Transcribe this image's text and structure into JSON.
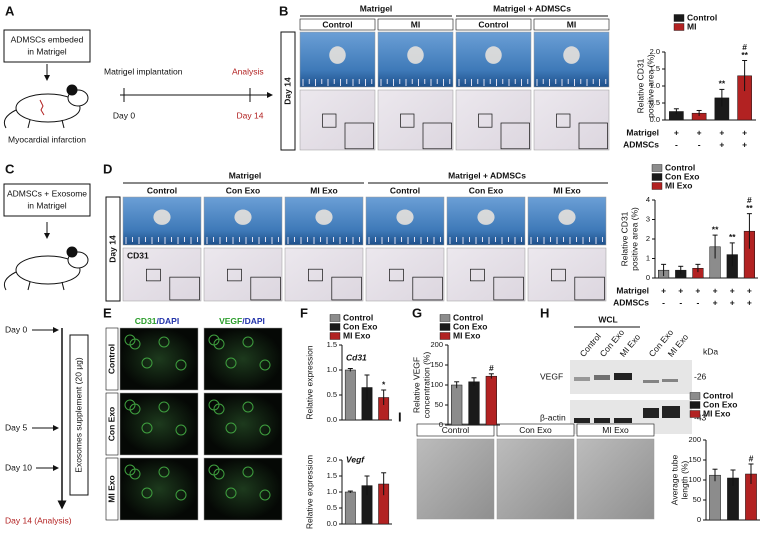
{
  "panels": {
    "A": {
      "label": "A",
      "box": [
        "ADMSCs embeded",
        "in Matrigel"
      ],
      "infarction": "Myocardial infarction",
      "timeline": {
        "start_label": "Matrigel implantation",
        "end_label": "Analysis",
        "start_day": "Day 0",
        "end_day": "Day 14"
      }
    },
    "B": {
      "label": "B",
      "groups": [
        "Matrigel",
        "Matrigel + ADMSCs"
      ],
      "columns": [
        "Control",
        "MI",
        "Control",
        "MI"
      ],
      "row_label": "Day 14"
    },
    "C": {
      "label": "C",
      "box": [
        "ADMSCs + Exosome",
        "in Matrigel"
      ],
      "days": [
        "Day 0",
        "Day 5",
        "Day 10",
        "Day 14 (Analysis)"
      ],
      "supplement": "Exosomes supplement (20 μg)"
    },
    "D": {
      "label": "D",
      "groups": [
        "Matrigel",
        "Matrigel + ADMSCs"
      ],
      "columns": [
        "Control",
        "Con Exo",
        "MI Exo",
        "Control",
        "Con Exo",
        "MI Exo"
      ],
      "row_label": "Day 14",
      "stain": "CD31"
    },
    "E": {
      "label": "E",
      "stains": [
        [
          "CD31",
          "/DAPI"
        ],
        [
          "VEGF",
          "/DAPI"
        ]
      ],
      "rows": [
        "Control",
        "Con Exo",
        "MI Exo"
      ]
    },
    "F": {
      "label": "F"
    },
    "G": {
      "label": "G"
    },
    "H": {
      "label": "H",
      "group": "WCL",
      "lanes": [
        "Control",
        "Con Exo",
        "MI Exo",
        "Con Exo",
        "MI Exo"
      ],
      "unit": "kDa",
      "bands": [
        {
          "name": "VEGF",
          "size": "-26"
        },
        {
          "name": "β-actin",
          "size": "-43"
        }
      ]
    },
    "I": {
      "label": "I",
      "columns": [
        "Control",
        "Con Exo",
        "MI Exo"
      ]
    }
  },
  "chart_data": [
    {
      "type": "bar",
      "ylabel": [
        "Relative CD31",
        "positive area (%)"
      ],
      "legend": [
        {
          "name": "Control",
          "color": "#1a1a1a"
        },
        {
          "name": "MI",
          "color": "#b22222"
        }
      ],
      "values": [
        0.25,
        0.2,
        0.65,
        1.3
      ],
      "errors": [
        0.08,
        0.08,
        0.25,
        0.45
      ],
      "colors": [
        "#1a1a1a",
        "#b22222",
        "#1a1a1a",
        "#b22222"
      ],
      "significance": [
        null,
        null,
        [
          "**"
        ],
        [
          "#",
          "**"
        ]
      ],
      "ylim": [
        0,
        2
      ],
      "yticks": [
        {
          "value": 0,
          "label": "0.0"
        },
        0.5,
        {
          "value": 1,
          "label": "1.0"
        },
        1.5,
        {
          "value": 2,
          "label": "2.0"
        }
      ],
      "conditions": [
        {
          "name": "Matrigel",
          "marks": [
            "+",
            "+",
            "+",
            "+"
          ]
        },
        {
          "name": "ADMSCs",
          "marks": [
            "-",
            "-",
            "+",
            "+"
          ]
        }
      ]
    },
    {
      "type": "bar",
      "ylabel": [
        "Relative CD31",
        "positive area (%)"
      ],
      "legend": [
        {
          "name": "Control",
          "color": "#8c8c8c"
        },
        {
          "name": "Con Exo",
          "color": "#1a1a1a"
        },
        {
          "name": "MI Exo",
          "color": "#b22222"
        }
      ],
      "values": [
        0.4,
        0.4,
        0.5,
        1.6,
        1.2,
        2.4
      ],
      "errors": [
        0.3,
        0.2,
        0.2,
        0.6,
        0.6,
        0.9
      ],
      "colors": [
        "#8c8c8c",
        "#1a1a1a",
        "#b22222",
        "#8c8c8c",
        "#1a1a1a",
        "#b22222"
      ],
      "significance": [
        null,
        null,
        null,
        [
          "**"
        ],
        [
          "**"
        ],
        [
          "#",
          "**"
        ]
      ],
      "ylim": [
        0,
        4
      ],
      "yticks": [
        0,
        1,
        2,
        3,
        4
      ],
      "conditions": [
        {
          "name": "Matrigel",
          "marks": [
            "+",
            "+",
            "+",
            "+",
            "+",
            "+"
          ]
        },
        {
          "name": "ADMSCs",
          "marks": [
            "-",
            "-",
            "-",
            "+",
            "+",
            "+"
          ]
        }
      ]
    },
    {
      "type": "bar",
      "title": "Cd31",
      "ylabel": [
        "Relative expression"
      ],
      "legend": [
        {
          "name": "Control",
          "color": "#8c8c8c"
        },
        {
          "name": "Con Exo",
          "color": "#1a1a1a"
        },
        {
          "name": "MI Exo",
          "color": "#b22222"
        }
      ],
      "values": [
        1.0,
        0.65,
        0.45
      ],
      "errors": [
        0.03,
        0.25,
        0.15
      ],
      "colors": [
        "#8c8c8c",
        "#1a1a1a",
        "#b22222"
      ],
      "significance": [
        null,
        null,
        [
          "*"
        ]
      ],
      "ylim": [
        0,
        1.5
      ],
      "yticks": [
        {
          "value": 0,
          "label": "0.0"
        },
        0.5,
        {
          "value": 1,
          "label": "1.0"
        },
        1.5
      ]
    },
    {
      "type": "bar",
      "title": "Vegf",
      "ylabel": [
        "Relative expression"
      ],
      "values": [
        1.0,
        1.2,
        1.25
      ],
      "errors": [
        0.03,
        0.3,
        0.35
      ],
      "colors": [
        "#8c8c8c",
        "#1a1a1a",
        "#b22222"
      ],
      "ylim": [
        0,
        2
      ],
      "yticks": [
        {
          "value": 0,
          "label": "0.0"
        },
        0.5,
        {
          "value": 1,
          "label": "1.0"
        },
        1.5,
        {
          "value": 2,
          "label": "2.0"
        }
      ]
    },
    {
      "type": "bar",
      "ylabel": [
        "Relative VEGF",
        "concentration (%)"
      ],
      "legend": [
        {
          "name": "Control",
          "color": "#8c8c8c"
        },
        {
          "name": "Con Exo",
          "color": "#1a1a1a"
        },
        {
          "name": "MI Exo",
          "color": "#b22222"
        }
      ],
      "values": [
        100,
        108,
        122
      ],
      "errors": [
        8,
        10,
        6
      ],
      "colors": [
        "#8c8c8c",
        "#1a1a1a",
        "#b22222"
      ],
      "significance": [
        null,
        null,
        [
          "#"
        ]
      ],
      "ylim": [
        0,
        200
      ],
      "yticks": [
        0,
        50,
        100,
        150,
        200
      ]
    },
    {
      "type": "bar",
      "ylabel": [
        "Average tube",
        "length (%)"
      ],
      "legend": [
        {
          "name": "Control",
          "color": "#8c8c8c"
        },
        {
          "name": "Con Exo",
          "color": "#1a1a1a"
        },
        {
          "name": "MI Exo",
          "color": "#b22222"
        }
      ],
      "values": [
        112,
        105,
        115
      ],
      "errors": [
        15,
        20,
        25
      ],
      "colors": [
        "#8c8c8c",
        "#1a1a1a",
        "#b22222"
      ],
      "significance": [
        null,
        null,
        [
          "#"
        ]
      ],
      "ylim": [
        0,
        200
      ],
      "yticks": [
        0,
        50,
        100,
        150,
        200
      ]
    }
  ]
}
